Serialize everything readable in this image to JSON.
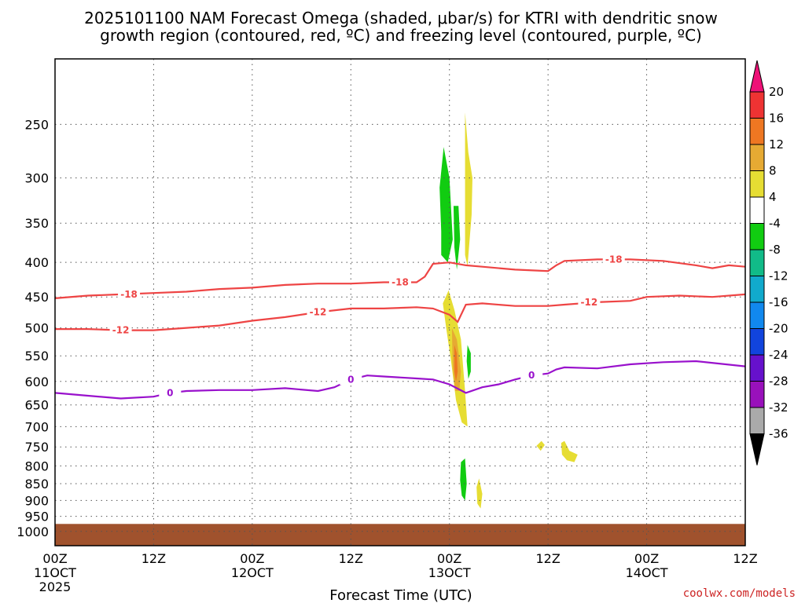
{
  "title_line1": "2025101100 NAM Forecast Omega (shaded, μbar/s) for KTRI with dendritic snow",
  "title_line2": "growth region (contoured, red, ºC) and freezing level (contoured, purple, ºC)",
  "credit": "coolwx.com/models",
  "chart_data": {
    "type": "heatmap",
    "xlabel": "Forecast Time (UTC)",
    "x_ticks": [
      {
        "lines": [
          "00Z",
          "11OCT",
          "2025"
        ],
        "hour": 0
      },
      {
        "lines": [
          "12Z"
        ],
        "hour": 12
      },
      {
        "lines": [
          "00Z",
          "12OCT"
        ],
        "hour": 24
      },
      {
        "lines": [
          "12Z"
        ],
        "hour": 36
      },
      {
        "lines": [
          "00Z",
          "13OCT"
        ],
        "hour": 48
      },
      {
        "lines": [
          "12Z"
        ],
        "hour": 60
      },
      {
        "lines": [
          "00Z",
          "14OCT"
        ],
        "hour": 72
      },
      {
        "lines": [
          "12Z"
        ],
        "hour": 84
      }
    ],
    "y_ticks": [
      250,
      300,
      350,
      400,
      450,
      500,
      550,
      600,
      650,
      700,
      750,
      800,
      850,
      900,
      950,
      1000
    ],
    "y_range_hpa": [
      200,
      1050
    ],
    "x_range_hours": [
      0,
      84
    ],
    "grid": true,
    "colorbar": {
      "labels": [
        "20",
        "16",
        "12",
        "8",
        "4",
        "-4",
        "-8",
        "-12",
        "-16",
        "-20",
        "-24",
        "-28",
        "-32",
        "-36"
      ],
      "colors": [
        "#ee1177",
        "#ee3333",
        "#ee7722",
        "#e6aa33",
        "#e6dd33",
        "#ffffff",
        "#11cc11",
        "#11bb88",
        "#11aacc",
        "#1188ee",
        "#1144dd",
        "#6611cc",
        "#9911bb",
        "#aaaaaa",
        "#000000"
      ]
    },
    "contours": [
      {
        "label": "-18",
        "color": "#ee4444",
        "points": [
          [
            0,
            452
          ],
          [
            4,
            448
          ],
          [
            8,
            446
          ],
          [
            12,
            444
          ],
          [
            16,
            442
          ],
          [
            20,
            438
          ],
          [
            24,
            436
          ],
          [
            28,
            432
          ],
          [
            32,
            430
          ],
          [
            36,
            430
          ],
          [
            40,
            428
          ],
          [
            44,
            428
          ],
          [
            45,
            420
          ],
          [
            46,
            402
          ],
          [
            48,
            400
          ],
          [
            50,
            404
          ],
          [
            52,
            406
          ],
          [
            56,
            410
          ],
          [
            60,
            412
          ],
          [
            61,
            404
          ],
          [
            62,
            398
          ],
          [
            66,
            396
          ],
          [
            70,
            396
          ],
          [
            74,
            398
          ],
          [
            78,
            404
          ],
          [
            80,
            408
          ],
          [
            82,
            404
          ],
          [
            84,
            406
          ]
        ],
        "label_positions": [
          [
            9,
            446
          ],
          [
            42,
            428
          ],
          [
            68,
            396
          ]
        ]
      },
      {
        "label": "-12",
        "color": "#ee4444",
        "points": [
          [
            0,
            502
          ],
          [
            4,
            502
          ],
          [
            8,
            504
          ],
          [
            12,
            504
          ],
          [
            16,
            500
          ],
          [
            20,
            496
          ],
          [
            24,
            488
          ],
          [
            28,
            482
          ],
          [
            32,
            474
          ],
          [
            36,
            468
          ],
          [
            40,
            468
          ],
          [
            44,
            466
          ],
          [
            46,
            468
          ],
          [
            48,
            478
          ],
          [
            49,
            490
          ],
          [
            50,
            462
          ],
          [
            52,
            460
          ],
          [
            56,
            464
          ],
          [
            60,
            464
          ],
          [
            62,
            462
          ],
          [
            66,
            458
          ],
          [
            70,
            456
          ],
          [
            72,
            450
          ],
          [
            76,
            448
          ],
          [
            80,
            450
          ],
          [
            84,
            446
          ]
        ],
        "label_positions": [
          [
            8,
            504
          ],
          [
            32,
            474
          ],
          [
            65,
            458
          ]
        ]
      },
      {
        "label": "0",
        "color": "#9911cc",
        "points": [
          [
            0,
            624
          ],
          [
            4,
            630
          ],
          [
            8,
            636
          ],
          [
            12,
            632
          ],
          [
            14,
            624
          ],
          [
            16,
            620
          ],
          [
            20,
            618
          ],
          [
            24,
            618
          ],
          [
            28,
            614
          ],
          [
            32,
            620
          ],
          [
            34,
            612
          ],
          [
            36,
            596
          ],
          [
            38,
            588
          ],
          [
            40,
            590
          ],
          [
            44,
            594
          ],
          [
            46,
            596
          ],
          [
            48,
            606
          ],
          [
            50,
            624
          ],
          [
            52,
            612
          ],
          [
            54,
            606
          ],
          [
            56,
            596
          ],
          [
            58,
            588
          ],
          [
            60,
            584
          ],
          [
            61,
            576
          ],
          [
            62,
            572
          ],
          [
            66,
            574
          ],
          [
            70,
            566
          ],
          [
            74,
            562
          ],
          [
            78,
            560
          ],
          [
            84,
            570
          ]
        ],
        "label_positions": [
          [
            14,
            624
          ],
          [
            36,
            596
          ],
          [
            58,
            588
          ]
        ]
      }
    ],
    "omega_areas": [
      {
        "value": -8,
        "color": "#11cc11",
        "points": [
          [
            47,
            360
          ],
          [
            46.8,
            310
          ],
          [
            47.3,
            270
          ],
          [
            48,
            300
          ],
          [
            48.4,
            370
          ],
          [
            47.8,
            400
          ],
          [
            47,
            390
          ]
        ]
      },
      {
        "value": -8,
        "color": "#11cc11",
        "points": [
          [
            48.5,
            330
          ],
          [
            48.6,
            380
          ],
          [
            48.9,
            410
          ],
          [
            49.3,
            370
          ],
          [
            49.1,
            330
          ]
        ]
      },
      {
        "value": 4,
        "color": "#e6dd33",
        "points": [
          [
            49.9,
            330
          ],
          [
            49.9,
            240
          ],
          [
            50.3,
            275
          ],
          [
            50.8,
            300
          ],
          [
            50.7,
            340
          ],
          [
            50.2,
            405
          ],
          [
            49.9,
            390
          ]
        ]
      },
      {
        "value": 4,
        "color": "#e6dd33",
        "points": [
          [
            47.2,
            460
          ],
          [
            47.9,
            440
          ],
          [
            48.6,
            470
          ],
          [
            49.4,
            520
          ],
          [
            49.9,
            620
          ],
          [
            50.2,
            700
          ],
          [
            49.5,
            690
          ],
          [
            48.8,
            640
          ],
          [
            48.2,
            560
          ],
          [
            47.6,
            500
          ]
        ]
      },
      {
        "value": 8,
        "color": "#e6aa33",
        "points": [
          [
            48.3,
            500
          ],
          [
            48.9,
            520
          ],
          [
            49.4,
            580
          ],
          [
            49.2,
            620
          ],
          [
            48.7,
            620
          ],
          [
            48.4,
            570
          ]
        ]
      },
      {
        "value": 12,
        "color": "#ee7722",
        "points": [
          [
            48.6,
            530
          ],
          [
            48.9,
            545
          ],
          [
            49.0,
            580
          ],
          [
            48.8,
            600
          ],
          [
            48.6,
            580
          ]
        ]
      },
      {
        "value": -8,
        "color": "#11cc11",
        "points": [
          [
            50.2,
            530
          ],
          [
            50.6,
            545
          ],
          [
            50.6,
            580
          ],
          [
            50.3,
            595
          ],
          [
            50.1,
            560
          ]
        ]
      },
      {
        "value": -8,
        "color": "#11cc11",
        "points": [
          [
            49.4,
            790
          ],
          [
            49.9,
            780
          ],
          [
            50.1,
            850
          ],
          [
            49.9,
            900
          ],
          [
            49.5,
            885
          ],
          [
            49.3,
            840
          ]
        ]
      },
      {
        "value": 4,
        "color": "#e6dd33",
        "points": [
          [
            51.3,
            860
          ],
          [
            51.6,
            835
          ],
          [
            52.0,
            880
          ],
          [
            51.8,
            925
          ],
          [
            51.4,
            910
          ]
        ]
      },
      {
        "value": 4,
        "color": "#e6dd33",
        "points": [
          [
            58.6,
            747
          ],
          [
            59.2,
            735
          ],
          [
            59.6,
            745
          ],
          [
            59.1,
            760
          ]
        ]
      },
      {
        "value": 4,
        "color": "#e6dd33",
        "points": [
          [
            61.6,
            740
          ],
          [
            62.0,
            735
          ],
          [
            62.6,
            760
          ],
          [
            63.6,
            770
          ],
          [
            63.2,
            790
          ],
          [
            62.3,
            785
          ],
          [
            61.7,
            770
          ]
        ]
      }
    ]
  }
}
